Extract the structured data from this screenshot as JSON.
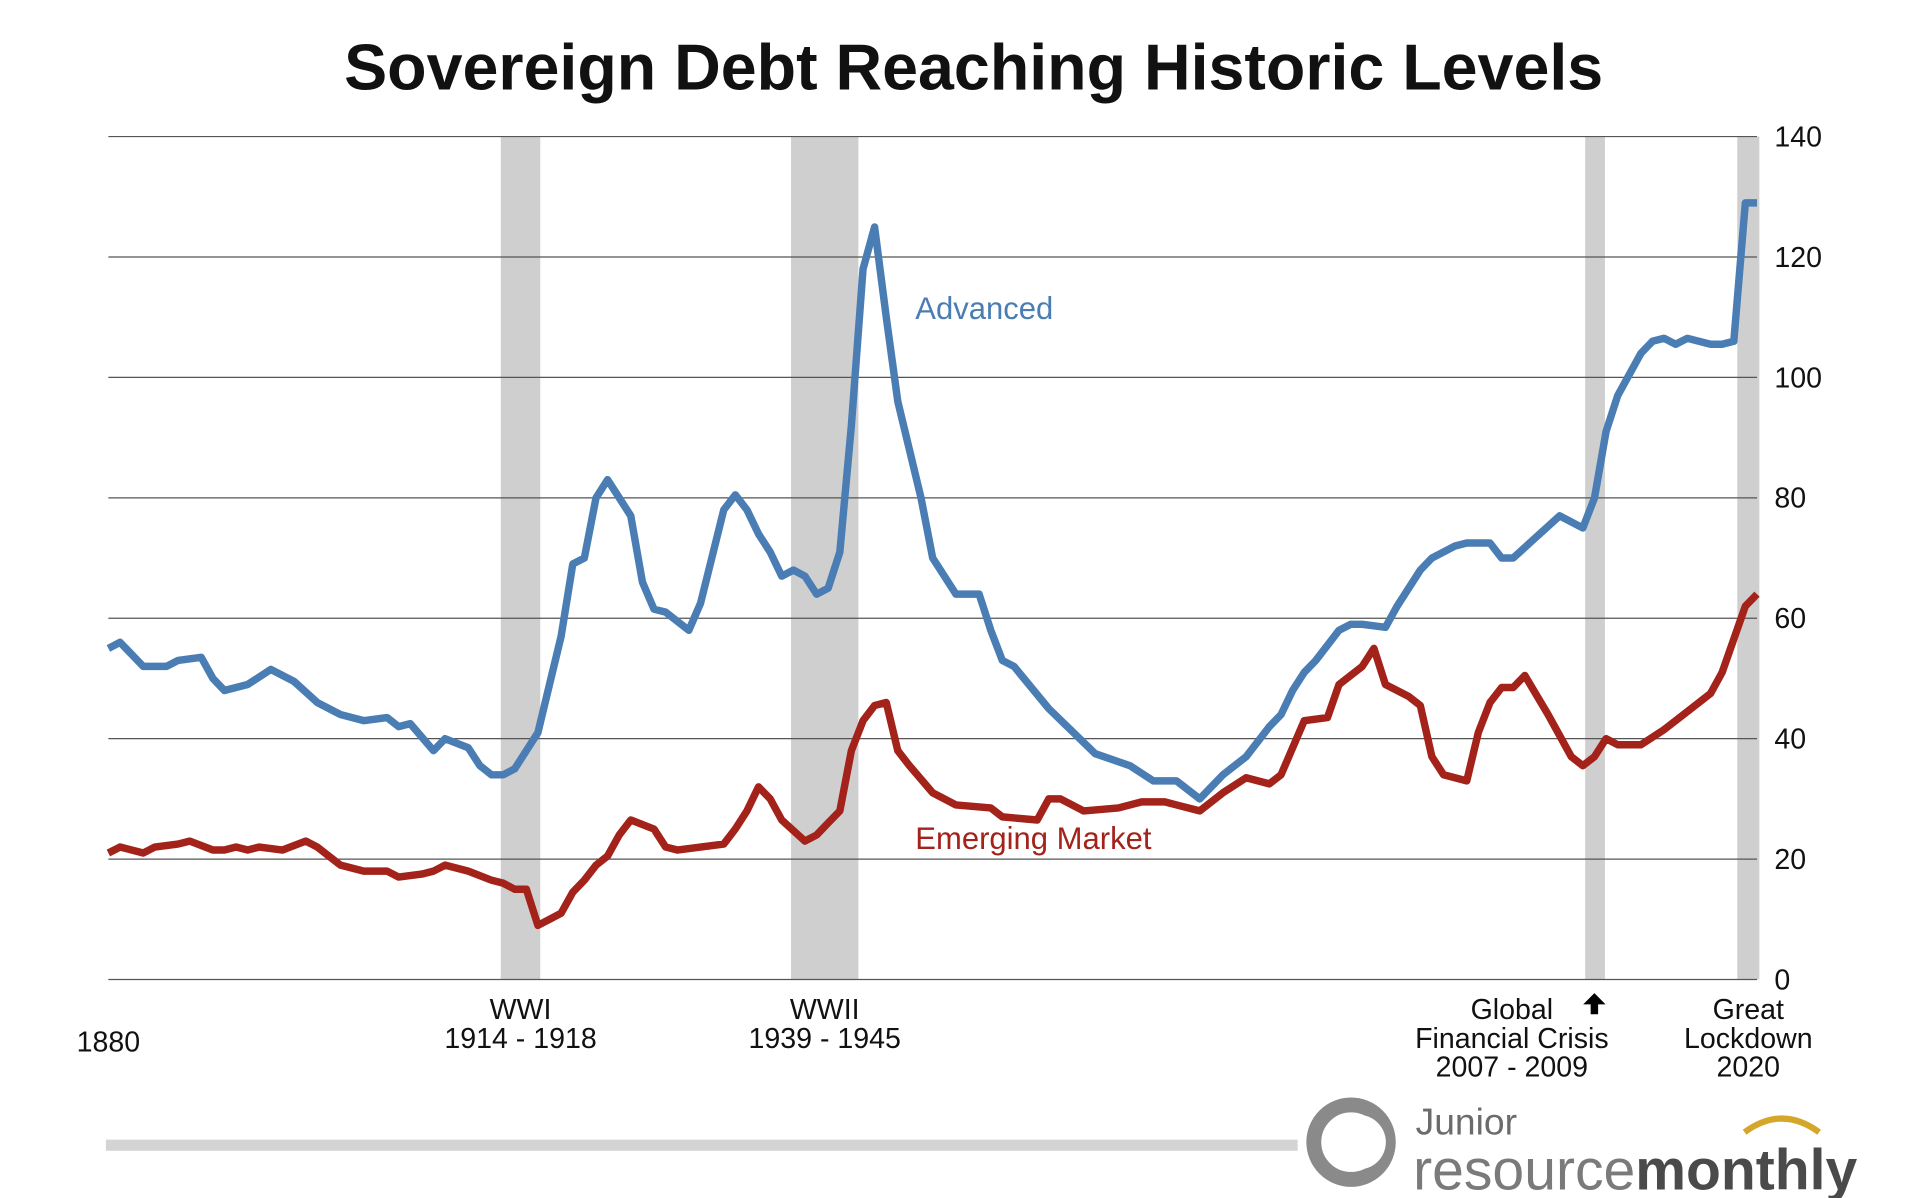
{
  "chart_data": {
    "type": "line",
    "title": "Sovereign Debt Reaching Historic Levels",
    "xlim": [
      1880,
      2022
    ],
    "xticks": [
      1880
    ],
    "ylim": [
      0,
      140
    ],
    "yticks": [
      0,
      20,
      40,
      60,
      80,
      100,
      120,
      140
    ],
    "grid": true,
    "y_axis_side": "right",
    "series": [
      {
        "name": "Advanced",
        "color": "#4a7db3",
        "x": [
          1880,
          1881,
          1883,
          1885,
          1886,
          1888,
          1889,
          1890,
          1892,
          1894,
          1896,
          1898,
          1900,
          1902,
          1904,
          1905,
          1906,
          1908,
          1909,
          1911,
          1912,
          1913,
          1914,
          1915,
          1917,
          1919,
          1920,
          1921,
          1922,
          1923,
          1924,
          1925,
          1926,
          1927,
          1928,
          1930,
          1931,
          1933,
          1934,
          1935,
          1936,
          1937,
          1938,
          1939,
          1940,
          1941,
          1942,
          1943,
          1944,
          1945,
          1946,
          1947,
          1948,
          1950,
          1951,
          1952,
          1953,
          1955,
          1956,
          1957,
          1958,
          1961,
          1965,
          1968,
          1970,
          1972,
          1974,
          1976,
          1978,
          1980,
          1981,
          1982,
          1983,
          1984,
          1986,
          1987,
          1988,
          1990,
          1991,
          1993,
          1994,
          1996,
          1997,
          1999,
          2000,
          2001,
          2003,
          2005,
          2006,
          2007,
          2008,
          2009,
          2010,
          2012,
          2013,
          2014,
          2015,
          2016,
          2018,
          2019,
          2020,
          2021,
          2022
        ],
        "values": [
          55,
          56,
          52,
          52,
          53,
          53.5,
          50,
          48,
          49,
          51.5,
          49.5,
          46,
          44,
          43,
          43.5,
          42,
          42.5,
          38,
          40,
          38.5,
          35.5,
          34,
          34,
          35,
          41,
          57,
          69,
          70,
          80,
          83,
          80,
          77,
          66,
          61.5,
          61,
          58,
          62.5,
          78,
          80.5,
          78,
          74,
          71,
          67,
          68,
          67,
          64,
          65,
          71,
          92,
          118,
          125,
          110,
          96,
          80,
          70,
          67,
          64,
          64,
          58,
          53,
          52,
          45,
          37.5,
          35.5,
          33,
          33,
          30,
          34,
          37,
          42,
          44,
          48,
          51,
          53,
          58,
          59,
          59,
          58.5,
          62,
          68,
          70,
          72,
          72.5,
          72.5,
          70,
          70,
          73.5,
          77,
          76,
          75,
          80,
          91,
          97,
          104,
          106,
          106.5,
          105.5,
          106.5,
          105.5,
          105.5,
          106,
          129,
          129
        ]
      },
      {
        "name": "Emerging Market",
        "color": "#a3221a",
        "x": [
          1880,
          1881,
          1883,
          1884,
          1886,
          1887,
          1889,
          1890,
          1891,
          1892,
          1893,
          1895,
          1897,
          1898,
          1900,
          1902,
          1904,
          1905,
          1907,
          1908,
          1909,
          1911,
          1913,
          1914,
          1915,
          1916,
          1917,
          1918,
          1919,
          1920,
          1921,
          1922,
          1923,
          1924,
          1925,
          1927,
          1928,
          1929,
          1931,
          1933,
          1934,
          1935,
          1936,
          1937,
          1938,
          1940,
          1941,
          1942,
          1943,
          1944,
          1945,
          1946,
          1947,
          1948,
          1949,
          1951,
          1953,
          1956,
          1957,
          1960,
          1961,
          1962,
          1964,
          1967,
          1969,
          1971,
          1972,
          1974,
          1976,
          1978,
          1980,
          1981,
          1983,
          1985,
          1986,
          1988,
          1989,
          1990,
          1992,
          1993,
          1994,
          1995,
          1997,
          1998,
          1999,
          2000,
          2001,
          2002,
          2004,
          2006,
          2007,
          2008,
          2009,
          2010,
          2012,
          2014,
          2016,
          2018,
          2019,
          2021,
          2022
        ],
        "values": [
          21,
          22,
          21,
          22,
          22.5,
          23,
          21.5,
          21.5,
          22,
          21.5,
          22,
          21.5,
          23,
          22,
          19,
          18,
          18,
          17,
          17.5,
          18,
          19,
          18,
          16.5,
          16,
          15,
          15,
          9,
          10,
          11,
          14.5,
          16.5,
          19,
          20.5,
          24,
          26.5,
          25,
          22,
          21.5,
          22,
          22.5,
          25,
          28,
          32,
          30,
          26.5,
          23,
          24,
          26,
          28,
          38,
          43,
          45.5,
          46,
          38,
          35.5,
          31,
          29,
          28.5,
          27,
          26.5,
          30,
          30,
          28,
          28.5,
          29.5,
          29.5,
          29,
          28,
          31,
          33.5,
          32.5,
          34,
          43,
          43.5,
          49,
          52,
          55,
          49,
          47,
          45.5,
          37,
          34,
          33,
          41,
          46,
          48.5,
          48.5,
          50.5,
          44,
          37,
          35.5,
          37,
          40,
          39,
          39,
          41.5,
          44.5,
          47.5,
          51,
          62,
          64
        ]
      }
    ],
    "events": [
      {
        "labels": [
          "WWI",
          "1914 - 1918"
        ],
        "band": [
          1913.8,
          1917.2
        ]
      },
      {
        "labels": [
          "WWII",
          "1939 - 1945"
        ],
        "band": [
          1938.8,
          1944.6
        ]
      },
      {
        "labels": [
          "Global",
          "Financial Crisis",
          "2007 - 2009"
        ],
        "band": [
          2007.2,
          2008.9
        ]
      },
      {
        "labels": [
          "Great",
          "Lockdown",
          "2020"
        ],
        "band": [
          2020.3,
          2022.2
        ]
      }
    ]
  },
  "logo": {
    "line1": "Junior",
    "line2a": "resource",
    "line2b": "monthly"
  }
}
